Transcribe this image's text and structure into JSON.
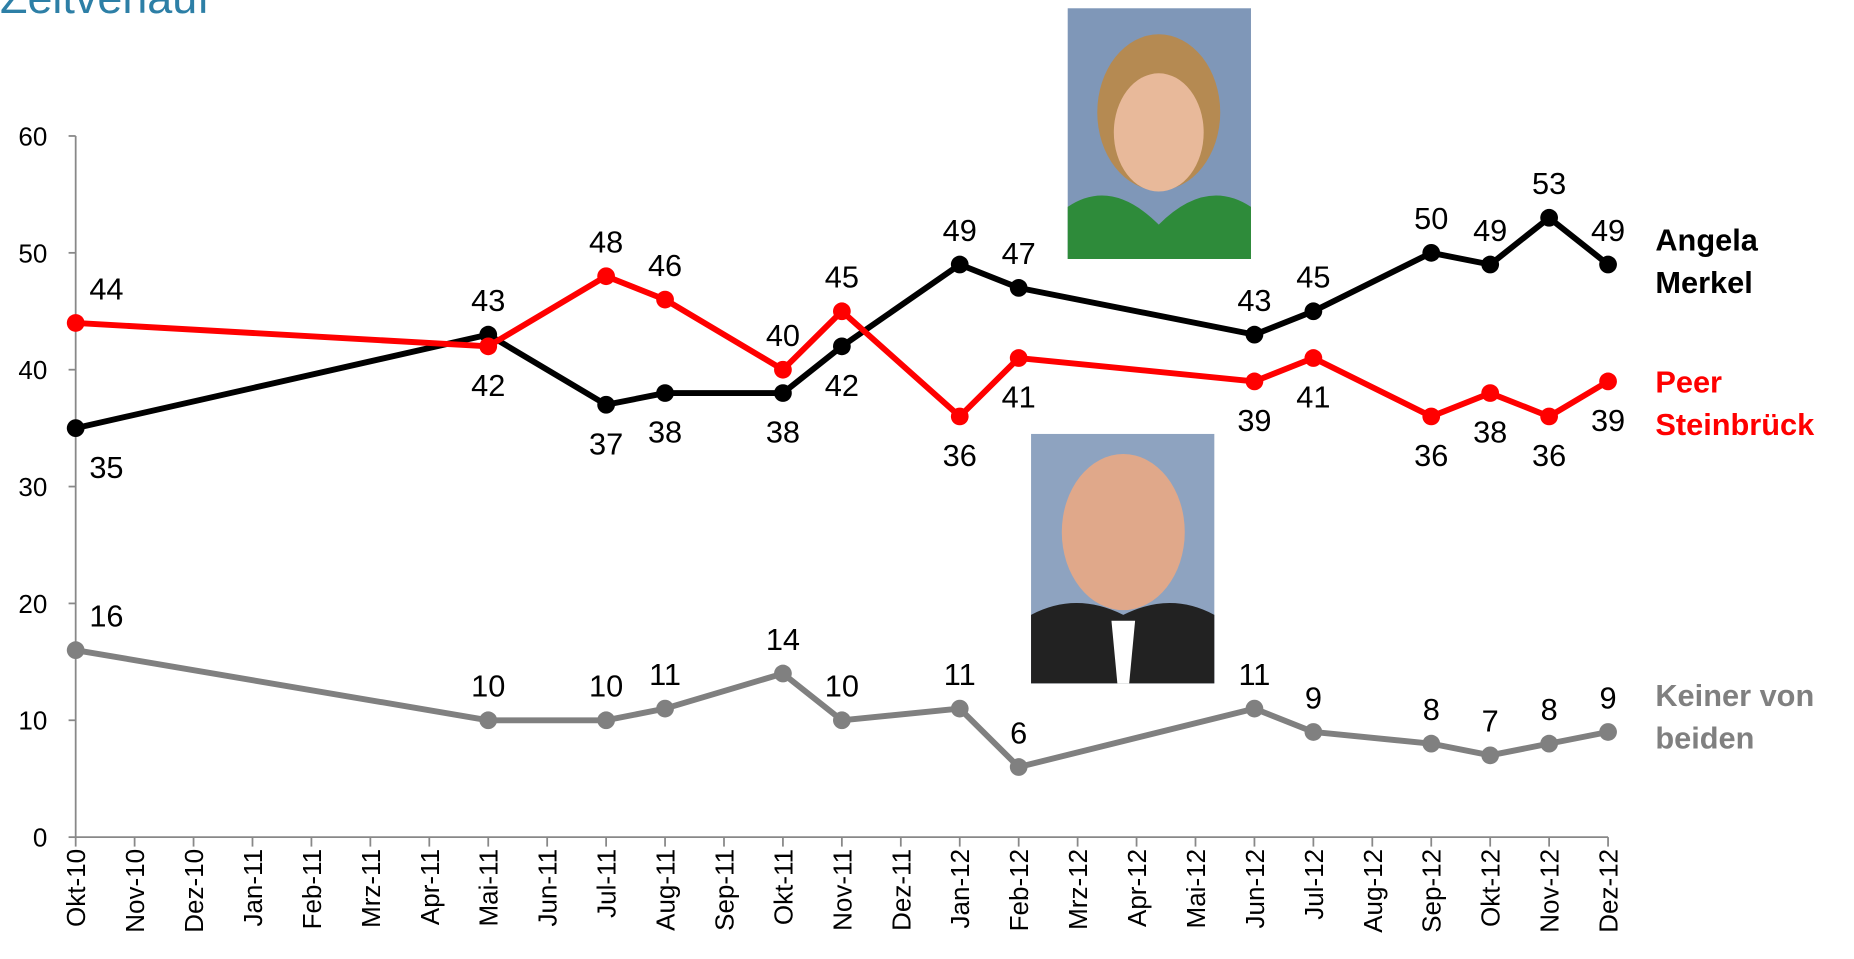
{
  "chart_data": {
    "type": "line",
    "title": "Zeitverlauf",
    "categories": [
      "Okt-10",
      "Nov-10",
      "Dez-10",
      "Jan-11",
      "Feb-11",
      "Mrz-11",
      "Apr-11",
      "Mai-11",
      "Jun-11",
      "Jul-11",
      "Aug-11",
      "Sep-11",
      "Okt-11",
      "Nov-11",
      "Dez-11",
      "Jan-12",
      "Feb-12",
      "Mrz-12",
      "Apr-12",
      "Mai-12",
      "Jun-12",
      "Jul-12",
      "Aug-12",
      "Sep-12",
      "Okt-12",
      "Nov-12",
      "Dez-12"
    ],
    "series": [
      {
        "name": "Angela Merkel",
        "color": "#000000",
        "values": [
          35,
          null,
          null,
          null,
          null,
          null,
          null,
          43,
          null,
          37,
          38,
          null,
          38,
          42,
          null,
          49,
          47,
          null,
          null,
          null,
          43,
          45,
          null,
          50,
          49,
          53,
          49
        ]
      },
      {
        "name": "Peer Steinbrück",
        "color": "#ff0000",
        "values": [
          44,
          null,
          null,
          null,
          null,
          null,
          null,
          42,
          null,
          48,
          46,
          null,
          40,
          45,
          null,
          36,
          41,
          null,
          null,
          null,
          39,
          41,
          null,
          36,
          38,
          36,
          39
        ]
      },
      {
        "name": "Keiner von beiden",
        "color": "#808080",
        "values": [
          16,
          null,
          null,
          null,
          null,
          null,
          null,
          10,
          null,
          10,
          11,
          null,
          14,
          10,
          null,
          11,
          6,
          null,
          null,
          null,
          11,
          9,
          null,
          8,
          7,
          8,
          9
        ]
      }
    ],
    "ylim": [
      0,
      60
    ],
    "yticks": [
      0,
      10,
      20,
      30,
      40,
      50,
      60
    ],
    "grid": false
  }
}
